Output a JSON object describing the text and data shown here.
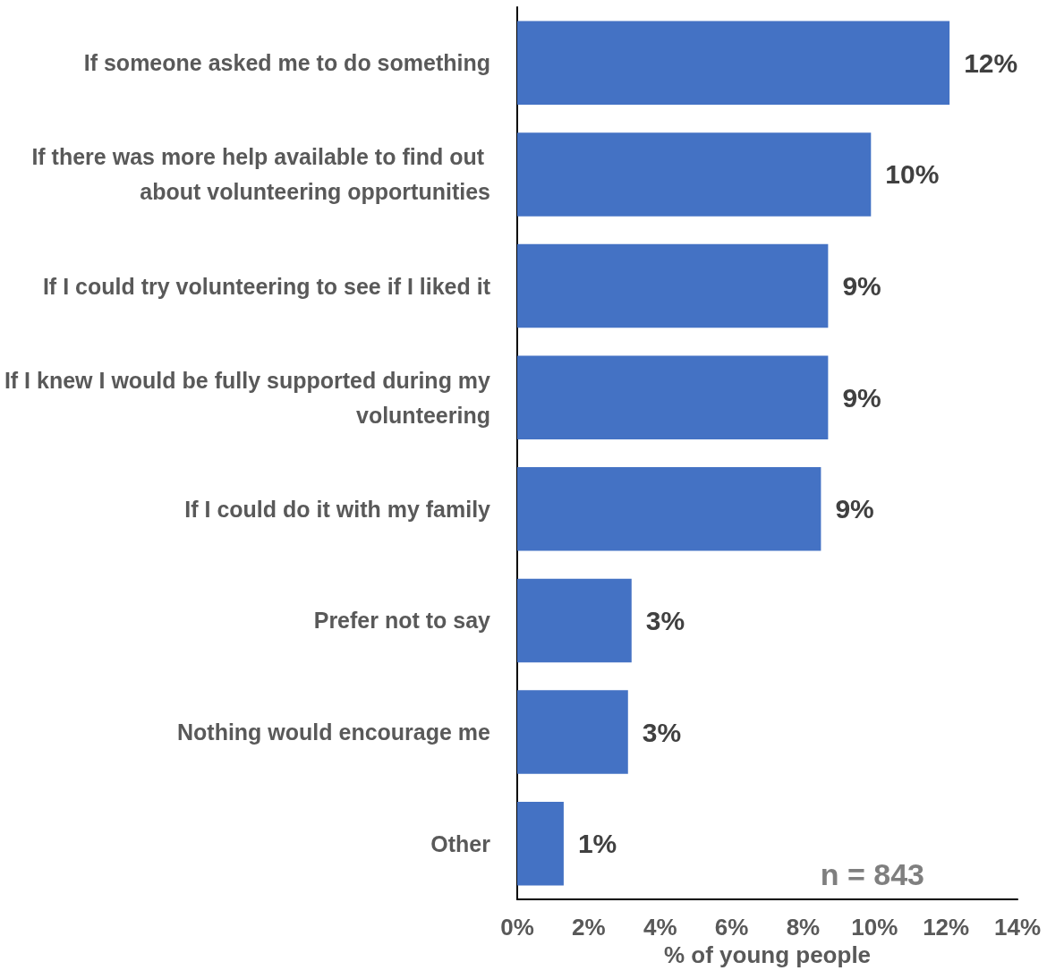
{
  "chart_data": {
    "type": "bar",
    "orientation": "horizontal",
    "xlabel": "% of young people",
    "categories": [
      "If someone asked me to do something",
      "If there was more help available to find out about volunteering opportunities",
      "If I could try volunteering to see if I liked it",
      "If I knew I would be fully supported during my volunteering",
      "If I could do it with my family",
      "Prefer not to say",
      "Nothing would encourage me",
      "Other"
    ],
    "values": [
      12.1,
      9.9,
      8.7,
      8.7,
      8.5,
      3.2,
      3.1,
      1.3
    ],
    "value_labels": [
      "12%",
      "10%",
      "9%",
      "9%",
      "9%",
      "3%",
      "3%",
      "1%"
    ],
    "color": "#4472c4",
    "xlim": [
      0,
      14
    ],
    "xticks": [
      {
        "value": 0,
        "label": "0%"
      },
      {
        "value": 2,
        "label": "2%"
      },
      {
        "value": 4,
        "label": "4%"
      },
      {
        "value": 6,
        "label": "6%"
      },
      {
        "value": 8,
        "label": "8%"
      },
      {
        "value": 10,
        "label": "10%"
      },
      {
        "value": 12,
        "label": "12%"
      },
      {
        "value": 14,
        "label": "14%"
      }
    ],
    "grid": false,
    "annotations": [
      "n = 843"
    ]
  }
}
